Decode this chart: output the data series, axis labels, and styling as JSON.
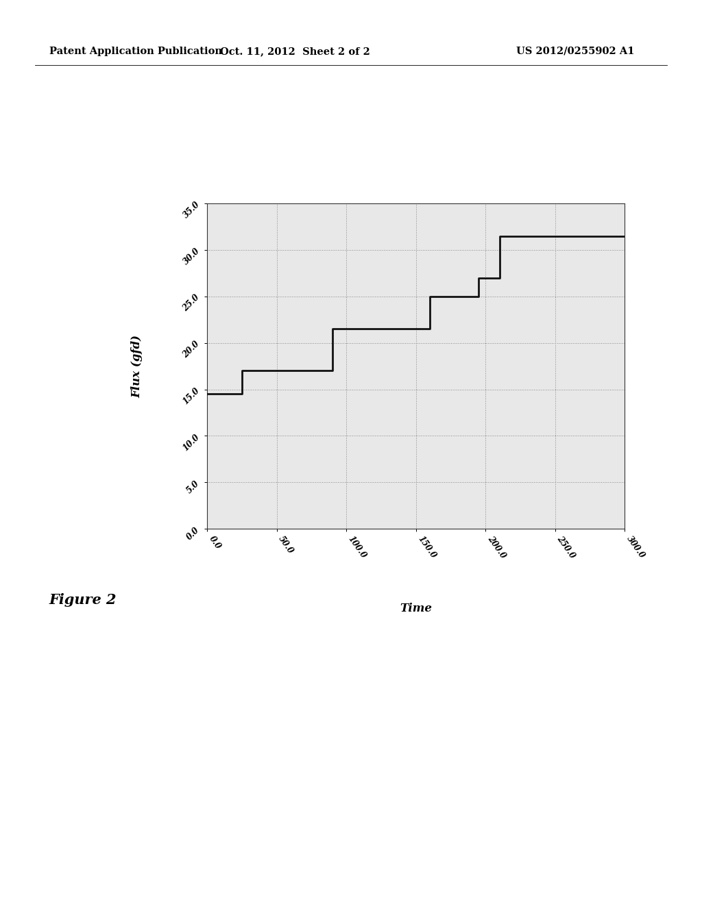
{
  "header_left": "Patent Application Publication",
  "header_center": "Oct. 11, 2012  Sheet 2 of 2",
  "header_right": "US 2012/0255902 A1",
  "figure_label": "Figure 2",
  "xlabel": "Time",
  "ylabel": "Flux (gfd)",
  "xlim": [
    0,
    300
  ],
  "ylim": [
    0,
    35
  ],
  "xticks": [
    0,
    50,
    100,
    150,
    200,
    250,
    300
  ],
  "yticks": [
    0,
    5,
    10,
    15,
    20,
    25,
    30,
    35
  ],
  "xtick_labels": [
    "0.0",
    "50.0",
    "100.0",
    "150.0",
    "200.0",
    "250.0",
    "300.0"
  ],
  "ytick_labels": [
    "0.0",
    "5.0",
    "10.0",
    "15.0",
    "20.0",
    "25.0",
    "30.0",
    "35.0"
  ],
  "line_color": "#111111",
  "line_width": 2.0,
  "grid_color": "#888888",
  "background_color": "#ffffff",
  "chart_background": "#e8e8e8",
  "step_x": [
    0,
    25,
    25,
    90,
    90,
    148,
    148,
    160,
    160,
    195,
    195,
    210,
    210,
    230,
    230,
    300
  ],
  "step_y": [
    14.5,
    14.5,
    17.0,
    17.0,
    21.5,
    21.5,
    21.5,
    21.5,
    25.0,
    25.0,
    27.0,
    27.0,
    31.5,
    31.5,
    31.5,
    31.5
  ]
}
